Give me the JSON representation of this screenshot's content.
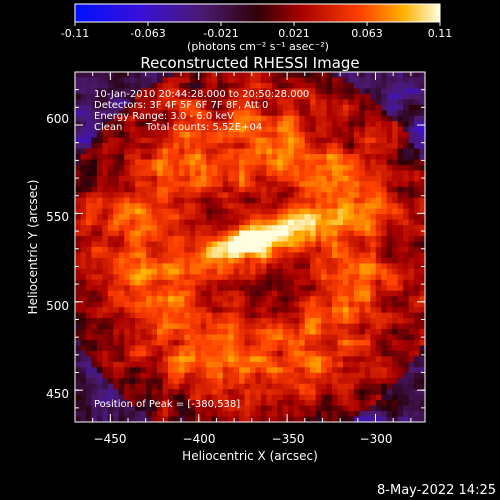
{
  "colorbar": {
    "ticks": [
      "-0.11",
      "-0.063",
      "-0.021",
      "0.021",
      "0.063",
      "0.11"
    ],
    "unit_label": "(photons cm⁻² s⁻¹ asec⁻²)",
    "range": [
      -0.11,
      0.11
    ]
  },
  "chart_data": {
    "type": "heatmap",
    "title": "Reconstructed RHESSI Image",
    "xlabel": "Heliocentric X (arcsec)",
    "ylabel": "Heliocentric Y (arcsec)",
    "xlim": [
      -470,
      -272
    ],
    "ylim": [
      432,
      630
    ],
    "xticks": [
      -450,
      -400,
      -350,
      -300
    ],
    "yticks": [
      450,
      500,
      550,
      600
    ],
    "xtick_labels": [
      "−450",
      "−400",
      "−350",
      "−300"
    ],
    "ytick_labels": [
      "450",
      "500",
      "550",
      "600"
    ],
    "peak": [
      -380,
      538
    ],
    "annotations": {
      "time_range": "10-Jan-2010 20:44:28.000 to 20:50:28.000",
      "detectors": "Detectors: 3F 4F 5F 6F 7F 8F, Att 0",
      "energy": "Energy Range: 3.0 - 6.0 keV",
      "clean_label": "Clean",
      "total_counts": "Total counts: 5.52E+04",
      "peak_label": "Position of Peak = [-380,538]"
    }
  },
  "footer": {
    "timestamp": "8-May-2022 14:25"
  }
}
